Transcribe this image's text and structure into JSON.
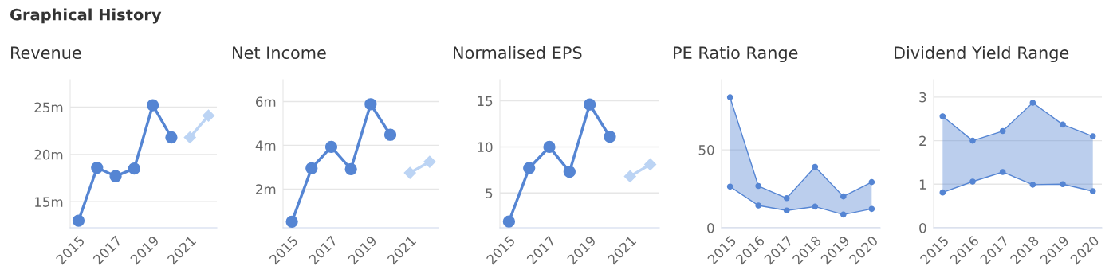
{
  "chart_data": [
    {
      "type": "line",
      "title": "Revenue",
      "annotations": [
        "Graphical History"
      ],
      "categories": [
        "2015",
        null,
        "2017",
        null,
        "2019",
        null,
        "2021",
        null
      ],
      "ylim": [
        12.25,
        27.9
      ],
      "yticks": [
        {
          "value": 15,
          "label": "15m"
        },
        {
          "value": 20,
          "label": "20m"
        },
        {
          "value": 25,
          "label": "25m"
        }
      ],
      "grid": "y",
      "series": [
        {
          "color": "#5585d3",
          "marker": "circle",
          "values": [
            13.0,
            18.6,
            17.7,
            18.5,
            25.2,
            21.8,
            null,
            null
          ]
        },
        {
          "color": "#bcd4f4",
          "marker": "diamond",
          "values": [
            null,
            null,
            null,
            null,
            null,
            null,
            21.8,
            24.1
          ]
        }
      ]
    },
    {
      "type": "line",
      "title": "Net Income",
      "categories": [
        "2015",
        null,
        "2017",
        null,
        "2019",
        null,
        "2021",
        null
      ],
      "ylim": [
        0.23,
        7.0
      ],
      "yticks": [
        {
          "value": 2,
          "label": "2m"
        },
        {
          "value": 4,
          "label": "4m"
        },
        {
          "value": 6,
          "label": "6m"
        }
      ],
      "grid": "y",
      "series": [
        {
          "color": "#5585d3",
          "marker": "circle",
          "values": [
            0.51,
            2.95,
            3.93,
            2.91,
            5.88,
            4.48,
            null,
            null
          ]
        },
        {
          "color": "#bcd4f4",
          "marker": "diamond",
          "values": [
            null,
            null,
            null,
            null,
            null,
            null,
            2.74,
            3.25
          ]
        }
      ]
    },
    {
      "type": "line",
      "title": "Normalised EPS",
      "categories": [
        "2015",
        null,
        "2017",
        null,
        "2019",
        null,
        "2021",
        null
      ],
      "ylim": [
        1.22,
        17.3
      ],
      "yticks": [
        5,
        10,
        15
      ],
      "grid": "y",
      "series": [
        {
          "color": "#5585d3",
          "marker": "circle",
          "values": [
            1.9,
            7.7,
            10.0,
            7.3,
            14.6,
            11.1,
            null,
            null
          ]
        },
        {
          "color": "#bcd4f4",
          "marker": "diamond",
          "values": [
            null,
            null,
            null,
            null,
            null,
            null,
            6.8,
            8.1
          ]
        }
      ]
    },
    {
      "type": "area",
      "title": "PE Ratio Range",
      "categories": [
        "2015",
        "2016",
        "2017",
        "2018",
        "2019",
        "2020"
      ],
      "ylim": [
        0,
        95
      ],
      "yticks": [
        0,
        50
      ],
      "grid": "y",
      "series": [
        {
          "type": "line",
          "color": "#5585d3",
          "marker": "circle",
          "values": [
            26.4,
            14.3,
            11.1,
            13.6,
            8.5,
            12.1
          ]
        },
        {
          "type": "area",
          "color": "#5585d3",
          "marker": "circle",
          "values": [
            83.7,
            26.8,
            19.0,
            39.1,
            20.1,
            29.3
          ]
        }
      ]
    },
    {
      "type": "area",
      "title": "Dividend Yield Range",
      "categories": [
        "2015",
        "2016",
        "2017",
        "2018",
        "2019",
        "2020"
      ],
      "ylim": [
        0,
        3.4
      ],
      "yticks": [
        0,
        1,
        2,
        3
      ],
      "grid": "y",
      "series": [
        {
          "type": "line",
          "color": "#5585d3",
          "marker": "circle",
          "values": [
            0.81,
            1.06,
            1.28,
            0.99,
            1.0,
            0.84
          ]
        },
        {
          "type": "area",
          "color": "#5585d3",
          "marker": "circle",
          "values": [
            2.56,
            2.0,
            2.22,
            2.87,
            2.37,
            2.1
          ]
        }
      ]
    }
  ]
}
